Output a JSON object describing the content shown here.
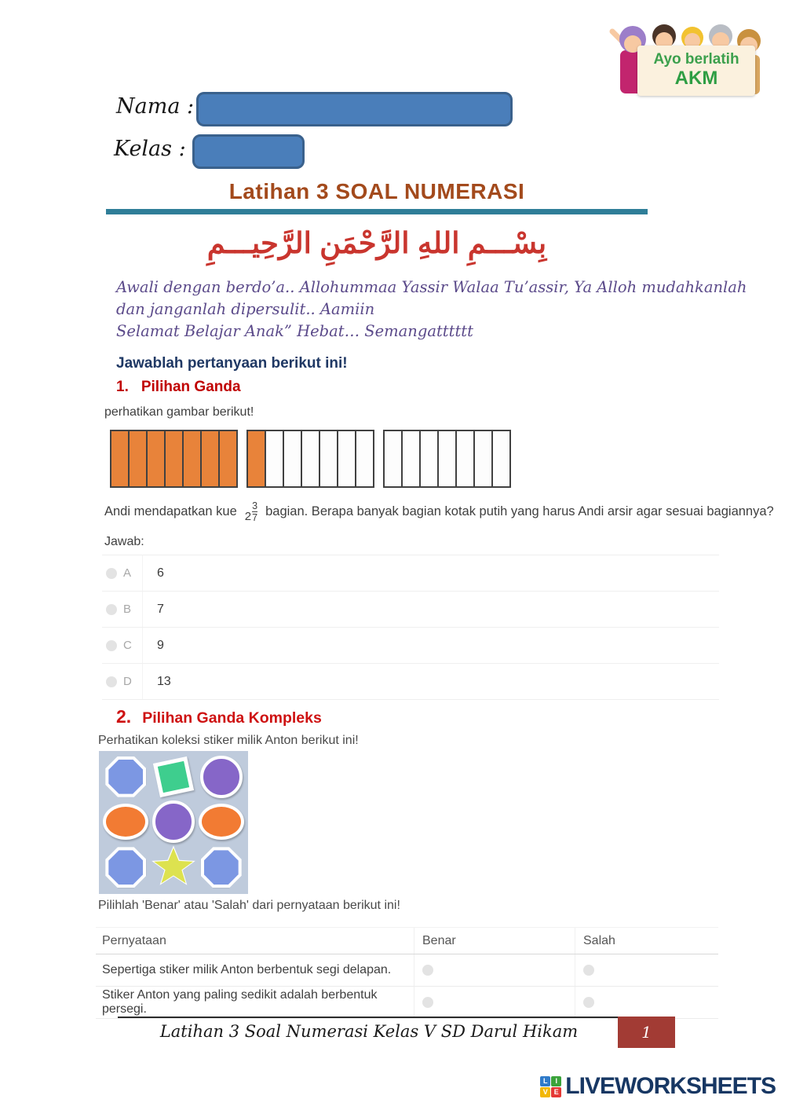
{
  "logo": {
    "line1": "Ayo berlatih",
    "line2": "AKM"
  },
  "form": {
    "name_label": "Nama :",
    "class_label": "Kelas :"
  },
  "title": "Latihan 3 SOAL NUMERASI",
  "bismillah": "بِسْـــمِ اللهِ الرَّحْمَنِ الرَّحِيـــمِ",
  "intro": {
    "line1": "Awali dengan berdo’a.. Allohummaa Yassir Walaa Tu’assir, Ya Alloh mudahkanlah",
    "line2": "dan janganlah dipersulit.. Aamiin",
    "line3": "Selamat Belajar Anak” Hebat… Semangatttttt"
  },
  "instruction": "Jawablah pertanyaan berikut ini!",
  "q1": {
    "number": "1.",
    "type_label": "Pilihan Ganda",
    "prompt": "perhatikan gambar berikut!",
    "bars": [
      {
        "cells": 7,
        "filled": 7
      },
      {
        "cells": 7,
        "filled": 1
      },
      {
        "cells": 7,
        "filled": 0
      }
    ],
    "question_prefix": "Andi mendapatkan kue",
    "fraction": {
      "whole": "2",
      "numerator": "3",
      "denominator": "7"
    },
    "question_suffix": "bagian. Berapa banyak bagian kotak putih yang harus Andi arsir agar sesuai bagiannya?",
    "answer_label": "Jawab:",
    "options": [
      {
        "letter": "A",
        "value": "6"
      },
      {
        "letter": "B",
        "value": "7"
      },
      {
        "letter": "C",
        "value": "9"
      },
      {
        "letter": "D",
        "value": "13"
      }
    ]
  },
  "q2": {
    "number": "2.",
    "type_label": "Pilihan Ganda Kompleks",
    "prompt": "Perhatikan koleksi stiker milik Anton berikut ini!",
    "stickers": [
      {
        "shape": "octagon",
        "color": "blue"
      },
      {
        "shape": "square",
        "color": "green"
      },
      {
        "shape": "circle",
        "color": "purple"
      },
      {
        "shape": "ellipse",
        "color": "orange"
      },
      {
        "shape": "circle",
        "color": "purple"
      },
      {
        "shape": "ellipse",
        "color": "orange"
      },
      {
        "shape": "octagon",
        "color": "blue"
      },
      {
        "shape": "star",
        "color": "yellow"
      },
      {
        "shape": "octagon",
        "color": "blue"
      }
    ],
    "instruction": "Pilihlah 'Benar' atau 'Salah' dari pernyataan berikut ini!",
    "table": {
      "headers": [
        "Pernyataan",
        "Benar",
        "Salah"
      ],
      "rows": [
        {
          "statement": "Sepertiga stiker milik Anton berbentuk segi delapan."
        },
        {
          "statement": "Stiker Anton yang paling sedikit adalah berbentuk persegi."
        }
      ]
    }
  },
  "footer": {
    "text": "Latihan 3 Soal Numerasi Kelas V SD Darul Hikam",
    "page": "1"
  },
  "watermark": {
    "squares": [
      {
        "letter": "L",
        "color": "#2F7BC9"
      },
      {
        "letter": "I",
        "color": "#3BA33B"
      },
      {
        "letter": "V",
        "color": "#F2B705"
      },
      {
        "letter": "E",
        "color": "#E53935"
      }
    ],
    "brand": "LIVEWORKSHEETS"
  },
  "colors": {
    "accent_teal": "#2F7E98",
    "title_brown": "#A34A1C",
    "heading_red": "#C00000",
    "instruction_navy": "#1F3864",
    "intro_purple": "#5B4A8A",
    "bar_orange": "#E8833A",
    "input_blue": "#4A7EBA",
    "page_box_red": "#A23B34",
    "brand_navy": "#173763",
    "stickers": {
      "blue": "#7C97E3",
      "green": "#3ECE8E",
      "purple": "#8666C8",
      "orange": "#F27B33",
      "yellow": "#DDE24F"
    }
  }
}
